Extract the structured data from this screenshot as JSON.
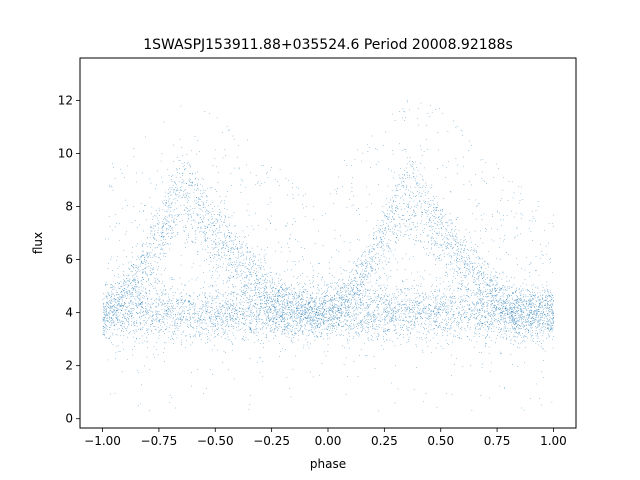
{
  "chart_data": {
    "type": "scatter",
    "title": "1SWASPJ153911.88+035524.6 Period 20008.92188s",
    "xlabel": "phase",
    "ylabel": "flux",
    "xlim": [
      -1.1,
      1.1
    ],
    "ylim": [
      -0.35,
      13.6
    ],
    "xticks": [
      -1.0,
      -0.75,
      -0.5,
      -0.25,
      0.0,
      0.25,
      0.5,
      0.75,
      1.0
    ],
    "xtick_labels": [
      "−1.00",
      "−0.75",
      "−0.50",
      "−0.25",
      "0.00",
      "0.25",
      "0.50",
      "0.75",
      "1.00"
    ],
    "yticks": [
      0,
      2,
      4,
      6,
      8,
      10,
      12
    ],
    "ytick_labels": [
      "0",
      "2",
      "4",
      "6",
      "8",
      "10",
      "12"
    ],
    "grid": false,
    "legend": "none",
    "marker_color": "#1f77b4",
    "marker_size": 0.6,
    "series": [
      {
        "description_of_structure": "phase-folded light curve repeated twice over phase -1..1",
        "baseline_flux": 4.0,
        "baseline_spread": 0.55,
        "peak_flux": [
          9.3,
          7.8
        ],
        "peak_phase_primary": [
          -0.65,
          0.35
        ],
        "rise_start_phase": [
          -1.0,
          0.0
        ],
        "decline_end_phase": [
          -0.15,
          0.85
        ]
      }
    ]
  }
}
